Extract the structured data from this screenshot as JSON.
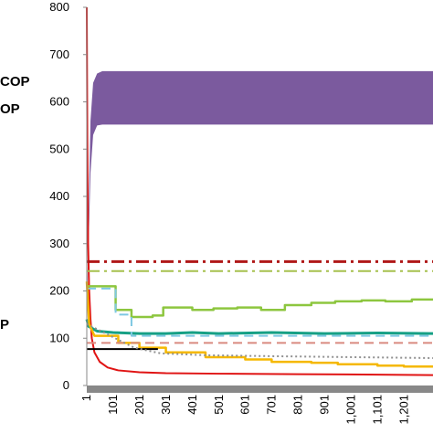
{
  "chart_data": {
    "type": "line",
    "title": "",
    "xlabel": "",
    "ylabel": "",
    "ylim": [
      0,
      800
    ],
    "y_ticks": [
      "0",
      "100",
      "200",
      "300",
      "400",
      "500",
      "600",
      "700",
      "800"
    ],
    "x_ticks": [
      "1",
      "101",
      "201",
      "301",
      "401",
      "501",
      "601",
      "701",
      "801",
      "901",
      "1,001",
      "1,101",
      "1,201"
    ],
    "x_tick_values": [
      1,
      101,
      201,
      301,
      401,
      501,
      601,
      701,
      801,
      901,
      1001,
      1101,
      1201
    ],
    "xlim": [
      1,
      1310
    ],
    "grid": false,
    "side_labels": [
      "COP",
      "OP",
      "P"
    ],
    "colors": {
      "purple": "#7b5a9e",
      "red": "#e01414",
      "darkred": "#b01818",
      "lightgreen": "#8dc63f",
      "olive": "#a6c14e",
      "teal": "#16a085",
      "lightblue": "#7ec8e3",
      "gold": "#f5b800",
      "black": "#000000",
      "salmon": "#d98a80",
      "gray": "#909090"
    },
    "series": [
      {
        "style": "band",
        "color": "purple",
        "x": [
          1,
          15,
          25,
          40,
          60,
          1310
        ],
        "low": [
          150,
          450,
          530,
          550,
          552,
          552
        ],
        "high": [
          150,
          560,
          640,
          660,
          665,
          665
        ]
      },
      {
        "style": "solid",
        "color": "red",
        "width": 2,
        "x": [
          1,
          3,
          6,
          10,
          15,
          20,
          30,
          50,
          80,
          120,
          200,
          300,
          500,
          800,
          1100,
          1310
        ],
        "y": [
          800,
          520,
          300,
          200,
          140,
          100,
          70,
          50,
          38,
          32,
          28,
          26,
          25,
          24,
          23,
          22
        ]
      },
      {
        "style": "dashdot",
        "color": "darkred",
        "width": 3,
        "x": [
          1,
          1310
        ],
        "y": [
          262,
          262
        ]
      },
      {
        "style": "dashdot",
        "color": "olive",
        "width": 2,
        "x": [
          1,
          1310
        ],
        "y": [
          242,
          242
        ]
      },
      {
        "style": "solid",
        "color": "lightgreen",
        "width": 2.5,
        "x": [
          1,
          110,
          110,
          170,
          170,
          250,
          250,
          290,
          290,
          400,
          400,
          480,
          480,
          570,
          570,
          660,
          660,
          750,
          750,
          850,
          850,
          940,
          940,
          1040,
          1040,
          1130,
          1130,
          1230,
          1230,
          1310
        ],
        "y": [
          210,
          210,
          160,
          160,
          145,
          145,
          148,
          148,
          165,
          165,
          160,
          160,
          163,
          163,
          165,
          165,
          160,
          160,
          170,
          170,
          175,
          175,
          178,
          178,
          180,
          180,
          178,
          178,
          182,
          182
        ]
      },
      {
        "style": "solid",
        "color": "teal",
        "width": 3,
        "x": [
          1,
          8,
          40,
          100,
          200,
          300,
          400,
          500,
          700,
          900,
          1100,
          1310
        ],
        "y": [
          140,
          125,
          115,
          112,
          110,
          110,
          112,
          110,
          112,
          110,
          111,
          110
        ]
      },
      {
        "style": "dashed",
        "color": "lightblue",
        "width": 2,
        "x": [
          1,
          110,
          110,
          170,
          170,
          1310
        ],
        "y": [
          205,
          205,
          150,
          150,
          105,
          105
        ]
      },
      {
        "style": "solid",
        "color": "gold",
        "width": 2.5,
        "x": [
          1,
          10,
          30,
          120,
          120,
          200,
          200,
          300,
          300,
          450,
          450,
          600,
          600,
          700,
          700,
          850,
          850,
          950,
          950,
          1100,
          1100,
          1200,
          1200,
          1310
        ],
        "y": [
          220,
          130,
          105,
          105,
          90,
          90,
          80,
          80,
          70,
          70,
          60,
          60,
          55,
          55,
          50,
          50,
          48,
          48,
          45,
          45,
          42,
          42,
          40,
          40
        ]
      },
      {
        "style": "solid",
        "color": "black",
        "width": 2,
        "x": [
          1,
          270
        ],
        "y": [
          77,
          77
        ]
      },
      {
        "style": "dashed",
        "color": "salmon",
        "width": 2,
        "x": [
          1,
          1310
        ],
        "y": [
          90,
          90
        ]
      },
      {
        "style": "dotted",
        "color": "gray",
        "width": 2,
        "x": [
          1,
          180,
          280,
          450,
          700,
          1000,
          1310
        ],
        "y": [
          130,
          80,
          68,
          64,
          62,
          60,
          58
        ]
      }
    ]
  }
}
